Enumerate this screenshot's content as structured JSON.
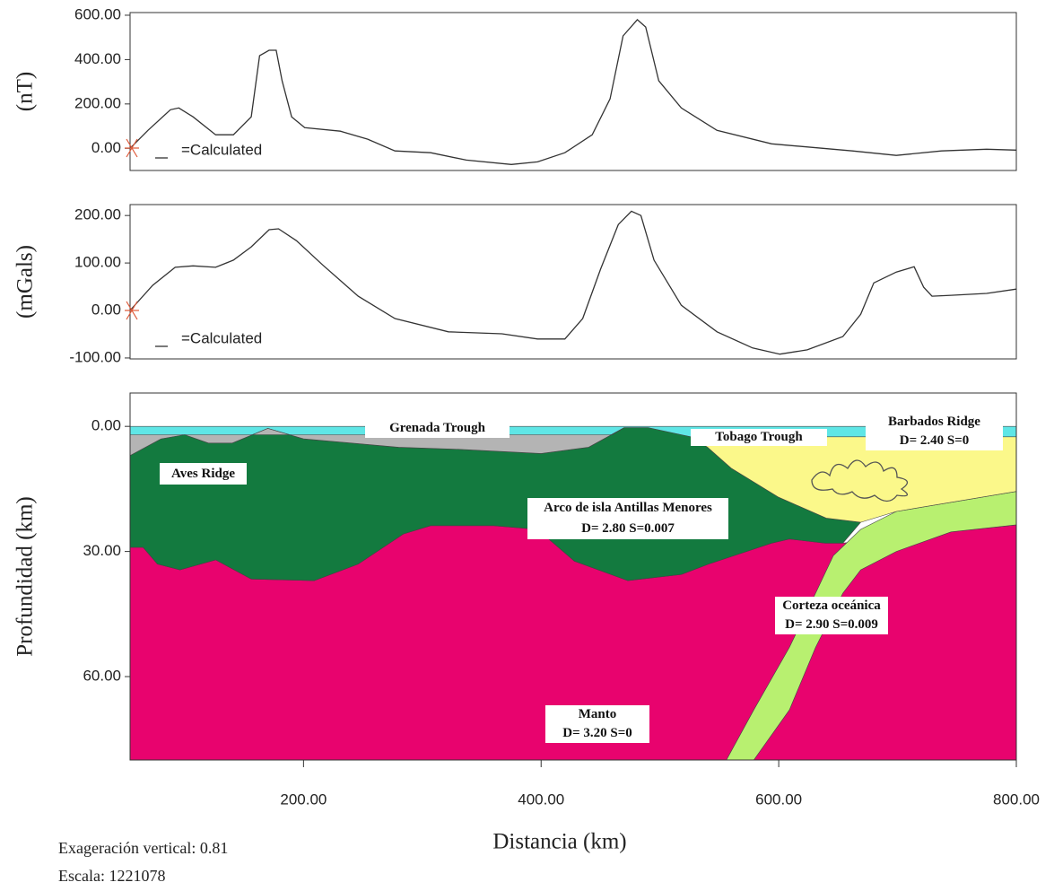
{
  "chart_data": [
    {
      "type": "line",
      "ylabel": "(nT)",
      "xlim": [
        54,
        800
      ],
      "ylim": [
        -100,
        612
      ],
      "yticks": [
        {
          "value": 0,
          "label": "0.00"
        },
        {
          "value": 200,
          "label": "200.00"
        },
        {
          "value": 400,
          "label": "400.00"
        },
        {
          "value": 600,
          "label": "600.00"
        }
      ],
      "x": [
        54,
        69,
        88,
        95,
        107,
        126,
        141,
        156,
        163,
        171,
        177,
        182,
        190,
        201,
        231,
        254,
        277,
        307,
        337,
        375,
        397,
        420,
        443,
        458,
        469,
        481,
        488,
        499,
        518,
        548,
        594,
        662,
        699,
        737,
        775,
        800
      ],
      "series": [
        {
          "name": "=Calculated",
          "color": "#333333",
          "values": [
            0,
            81,
            174,
            182,
            142,
            61,
            61,
            142,
            418,
            442,
            442,
            304,
            142,
            93,
            77,
            41,
            -12,
            -20,
            -53,
            -73,
            -61,
            -20,
            61,
            223,
            507,
            580,
            547,
            304,
            182,
            81,
            20,
            -12,
            -32,
            -12,
            -4,
            -8
          ]
        }
      ]
    },
    {
      "type": "line",
      "ylabel": "(mGals)",
      "xlim": [
        54,
        800
      ],
      "ylim": [
        -102,
        223
      ],
      "yticks": [
        {
          "value": -100,
          "label": "-100.00"
        },
        {
          "value": 0,
          "label": "0.00"
        },
        {
          "value": 100,
          "label": "100.00"
        },
        {
          "value": 200,
          "label": "200.00"
        }
      ],
      "x": [
        54,
        73,
        92,
        107,
        126,
        141,
        156,
        171,
        179,
        194,
        216,
        246,
        277,
        322,
        367,
        397,
        420,
        435,
        450,
        465,
        476,
        484,
        495,
        518,
        548,
        578,
        601,
        624,
        654,
        669,
        680,
        699,
        714,
        722,
        729,
        745,
        775,
        800
      ],
      "series": [
        {
          "name": "=Calculated",
          "color": "#333333",
          "values": [
            0,
            53,
            91,
            94,
            91,
            106,
            134,
            170,
            172,
            147,
            96,
            30,
            -17,
            -45,
            -49,
            -60,
            -60,
            -17,
            87,
            181,
            209,
            200,
            106,
            11,
            -45,
            -79,
            -92,
            -83,
            -55,
            -8,
            58,
            81,
            92,
            49,
            30,
            32,
            36,
            45
          ]
        }
      ]
    },
    {
      "type": "section",
      "ylabel": "Profundidad (km)",
      "xlabel": "Distancia (km)",
      "xlim": [
        54,
        800
      ],
      "ylim": [
        80,
        -8
      ],
      "xticks": [
        {
          "value": 200,
          "label": "200.00"
        },
        {
          "value": 400,
          "label": "400.00"
        },
        {
          "value": 600,
          "label": "600.00"
        },
        {
          "value": 800,
          "label": "800.00"
        }
      ],
      "yticks": [
        {
          "value": 0,
          "label": "0.00"
        },
        {
          "value": 30,
          "label": "30.00"
        },
        {
          "value": 60,
          "label": "60.00"
        }
      ],
      "layers": [
        {
          "color": "#5fe6e6",
          "x": [
            54,
            800,
            800,
            54
          ],
          "y": [
            0,
            0,
            2.5,
            2.5
          ]
        },
        {
          "color": "#e8036e",
          "x": [
            54,
            65,
            77,
            96,
            126,
            156,
            209,
            246,
            284,
            307,
            360,
            397,
            428,
            473,
            518,
            541,
            594,
            609,
            639,
            654,
            800,
            800,
            54
          ],
          "y": [
            29,
            29,
            33,
            34.4,
            32,
            36.6,
            37,
            33,
            25.8,
            23.8,
            23.8,
            24.7,
            32.3,
            37,
            35.5,
            33,
            28,
            27,
            28,
            28,
            23.6,
            80,
            80
          ]
        },
        {
          "color": "#137a3f",
          "x": [
            54,
            80,
            100,
            120,
            140,
            170,
            200,
            280,
            330,
            400,
            440,
            470,
            490,
            526,
            540,
            560,
            600,
            640,
            669,
            660,
            654,
            639,
            609,
            594,
            541,
            518,
            473,
            428,
            397,
            360,
            307,
            284,
            246,
            209,
            156,
            126,
            96,
            77,
            65,
            54
          ],
          "y": [
            7,
            3,
            2,
            4,
            4,
            0.5,
            3,
            5,
            5.5,
            6.5,
            5,
            0.3,
            0.3,
            2.5,
            5,
            10,
            17,
            22,
            23,
            26,
            28,
            28,
            27,
            28,
            33,
            35.5,
            37,
            32.3,
            24.7,
            23.8,
            23.8,
            25.8,
            33,
            37,
            36.6,
            32,
            34.4,
            33,
            29,
            29
          ]
        },
        {
          "color": "#b8f070",
          "x": [
            800,
            699,
            669,
            646,
            631,
            609,
            579,
            556,
            579,
            609,
            631,
            654,
            669,
            699,
            745,
            800
          ],
          "y": [
            15.6,
            20.4,
            24.7,
            31,
            40,
            53,
            68,
            80,
            80,
            68,
            53,
            40,
            34.4,
            30,
            25.3,
            23.6
          ]
        },
        {
          "color": "#fbf88a",
          "x": [
            526,
            800,
            800,
            699,
            669,
            640,
            600,
            560,
            540
          ],
          "y": [
            2.5,
            2.5,
            15.6,
            20.4,
            23,
            22,
            17,
            10,
            5
          ]
        },
        {
          "color": "#b4b4b4",
          "x": [
            54,
            460,
            470,
            440,
            400,
            330,
            280,
            200,
            170,
            140,
            120,
            100,
            80,
            54
          ],
          "y": [
            2,
            2,
            0.3,
            5,
            6.5,
            5.5,
            5,
            3,
            0.5,
            4,
            4,
            2,
            3,
            7
          ]
        }
      ],
      "annotations": [
        [
          "Grenada Trough"
        ],
        [
          "Tobago Trough"
        ],
        [
          "Barbados Ridge",
          "D= 2.40 S=0"
        ],
        [
          "Aves Ridge"
        ],
        [
          "Arco de isla Antillas Menores",
          "D= 2.80 S=0.007"
        ],
        [
          "Corteza oceánica",
          "D= 2.90 S=0.009"
        ],
        [
          "Manto",
          "D= 3.20 S=0"
        ]
      ]
    }
  ],
  "footer": [
    "Exageración vertical: 0.81",
    "Escala: 1221078"
  ]
}
